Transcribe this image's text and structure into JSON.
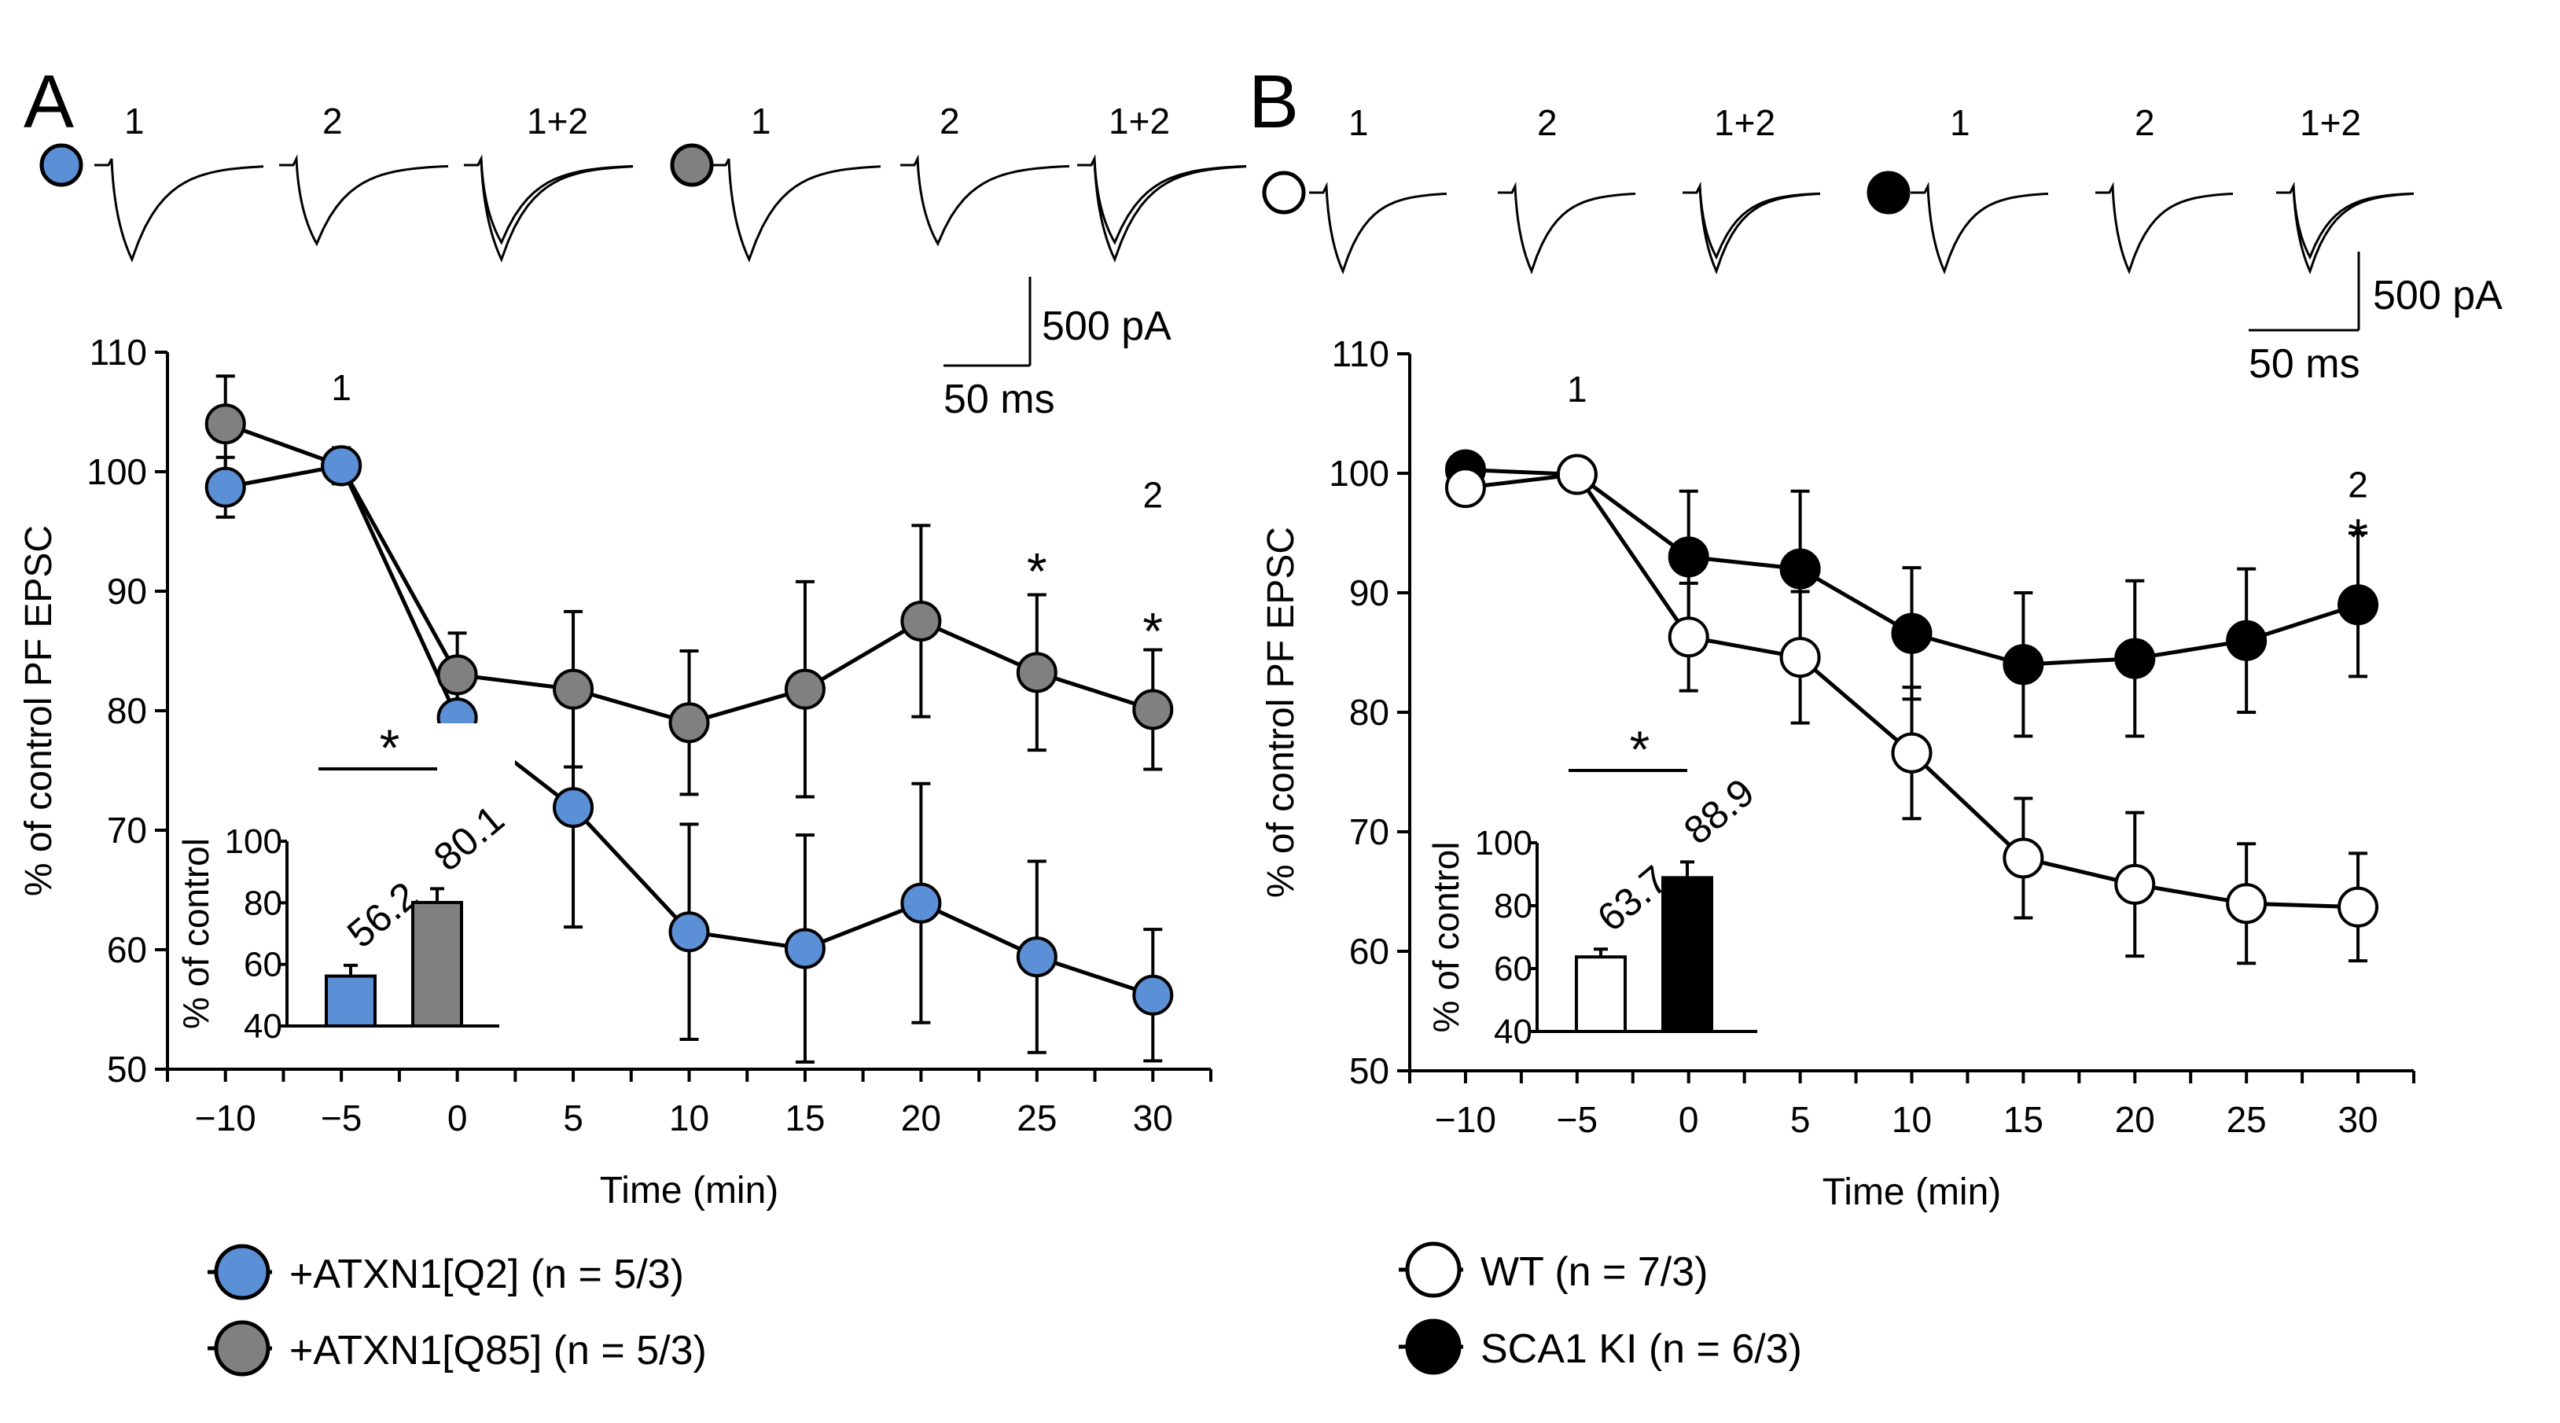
{
  "panels": [
    {
      "letter": "A",
      "traces": {
        "groups": [
          {
            "marker_color": "#5b8fd6",
            "labels": [
              "1",
              "2",
              "1+2"
            ]
          },
          {
            "marker_color": "#808080",
            "labels": [
              "1",
              "2",
              "1+2"
            ]
          }
        ]
      },
      "scalebar": {
        "vertical": "500 pA",
        "horizontal": "50 ms"
      },
      "chart_data": {
        "type": "line",
        "ylabel": "% of control PF EPSC",
        "xlabel": "Time (min)",
        "ylim": [
          50,
          110
        ],
        "yticks": [
          50,
          60,
          70,
          80,
          90,
          100,
          110
        ],
        "xlim": [
          -12.5,
          32.5
        ],
        "xticks": [
          -10,
          -5,
          0,
          5,
          10,
          15,
          20,
          25,
          30
        ],
        "xtick_labels": [
          "−10",
          "−5",
          "0",
          "5",
          "10",
          "15",
          "20",
          "25",
          "30"
        ],
        "x": [
          -10,
          -5,
          0,
          5,
          10,
          15,
          20,
          25,
          30
        ],
        "series": [
          {
            "name": "+ATXN1[Q85] (n = 5/3)",
            "color": "#808080",
            "values": [
              104,
              100.5,
              83,
              81.8,
              79,
              81.8,
              87.5,
              83.2,
              80.1
            ],
            "errors": [
              4,
              1.5,
              3.5,
              6.5,
              6,
              9,
              8,
              6.5,
              5
            ]
          },
          {
            "name": "+ATXN1[Q2] (n = 5/3)",
            "color": "#5b8fd6",
            "values": [
              98.7,
              100.5,
              79.4,
              71.9,
              61.5,
              60.1,
              63.9,
              59.4,
              56.2
            ],
            "errors": [
              2.5,
              1.5,
              2.5,
              10,
              9,
              9.5,
              10,
              8,
              5.5
            ]
          }
        ],
        "annotations": [
          {
            "text": "1",
            "x": -5,
            "y": 106
          },
          {
            "text": "*",
            "x": 25,
            "y": 92
          },
          {
            "text": "2",
            "x": 30,
            "y": 97
          },
          {
            "text": "*",
            "x": 30,
            "y": 87
          }
        ],
        "inset": {
          "type": "bar",
          "ylabel": "% of control",
          "ylim": [
            40,
            100
          ],
          "yticks": [
            40,
            60,
            80,
            100
          ],
          "categories": [
            "+ATXN1[Q2]",
            "+ATXN1[Q85]"
          ],
          "values": [
            56.2,
            80.1
          ],
          "value_labels": [
            "56.2",
            "80.1"
          ],
          "errors": [
            3.5,
            4.5
          ],
          "colors": [
            "#5b8fd6",
            "#808080"
          ],
          "significance": "*"
        },
        "legend": [
          {
            "label": "+ATXN1[Q2] (n = 5/3)",
            "color": "#5b8fd6"
          },
          {
            "label": "+ATXN1[Q85] (n = 5/3)",
            "color": "#808080"
          }
        ]
      }
    },
    {
      "letter": "B",
      "traces": {
        "groups": [
          {
            "marker_color": "#ffffff",
            "labels": [
              "1",
              "2",
              "1+2"
            ]
          },
          {
            "marker_color": "#000000",
            "labels": [
              "1",
              "2",
              "1+2"
            ]
          }
        ]
      },
      "scalebar": {
        "vertical": "500 pA",
        "horizontal": "50 ms"
      },
      "chart_data": {
        "type": "line",
        "ylabel": "% of control PF EPSC",
        "xlabel": "Time (min)",
        "ylim": [
          50,
          110
        ],
        "yticks": [
          50,
          60,
          70,
          80,
          90,
          100,
          110
        ],
        "xlim": [
          -12.5,
          32.5
        ],
        "xticks": [
          -10,
          -5,
          0,
          5,
          10,
          15,
          20,
          25,
          30
        ],
        "xtick_labels": [
          "−10",
          "−5",
          "0",
          "5",
          "10",
          "15",
          "20",
          "25",
          "30"
        ],
        "x": [
          -10,
          -5,
          0,
          5,
          10,
          15,
          20,
          25,
          30
        ],
        "series": [
          {
            "name": "SCA1 KI (n = 6/3)",
            "color": "#000000",
            "values": [
              100.3,
              99.9,
              93,
              92,
              86.6,
              84,
              84.5,
              86,
              89
            ],
            "errors": [
              0.8,
              0.8,
              5.5,
              6.5,
              5.5,
              6,
              6.5,
              6,
              6
            ]
          },
          {
            "name": "WT (n = 7/3)",
            "color": "#ffffff",
            "values": [
              98.8,
              99.9,
              86.3,
              84.6,
              76.6,
              67.8,
              65.6,
              64,
              63.7
            ],
            "errors": [
              0.8,
              0.8,
              4.5,
              5.5,
              5.5,
              5,
              6,
              5,
              4.5
            ]
          }
        ],
        "annotations": [
          {
            "text": "1",
            "x": -5,
            "y": 106
          },
          {
            "text": "2",
            "x": 30,
            "y": 98
          },
          {
            "text": "*",
            "x": 30,
            "y": 95
          }
        ],
        "inset": {
          "type": "bar",
          "ylabel": "% of control",
          "ylim": [
            40,
            100
          ],
          "yticks": [
            40,
            60,
            80,
            100
          ],
          "categories": [
            "WT",
            "SCA1 KI"
          ],
          "values": [
            63.7,
            88.9
          ],
          "value_labels": [
            "63.7",
            "88.9"
          ],
          "errors": [
            2.5,
            5
          ],
          "colors": [
            "#ffffff",
            "#000000"
          ],
          "significance": "*"
        },
        "legend": [
          {
            "label": "WT (n = 7/3)",
            "color": "#ffffff"
          },
          {
            "label": "SCA1 KI (n = 6/3)",
            "color": "#000000"
          }
        ]
      }
    }
  ]
}
